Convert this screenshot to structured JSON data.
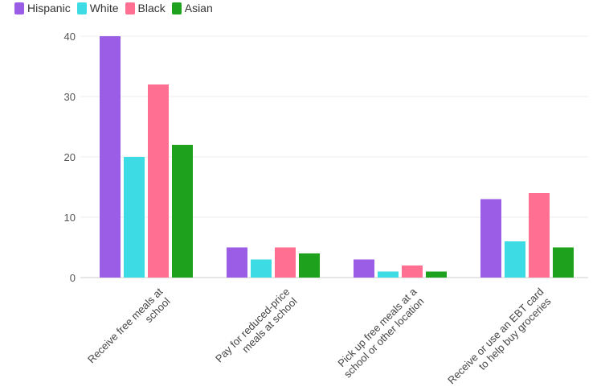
{
  "chart_data": {
    "type": "bar",
    "title": "",
    "xlabel": "",
    "ylabel": "",
    "ylim": [
      0,
      40
    ],
    "yticks": [
      0,
      10,
      20,
      30,
      40
    ],
    "grid": true,
    "legend_position": "top-left",
    "categories": [
      [
        "Receive free meals at",
        "school"
      ],
      [
        "Pay for reduced-price",
        "meals at school"
      ],
      [
        "Pick up free meals at a",
        "school or other location"
      ],
      [
        "Receive or use an EBT card",
        "to help buy groceries"
      ]
    ],
    "series": [
      {
        "name": "Hispanic",
        "color": "#9b5de5",
        "values": [
          40,
          5,
          3,
          13
        ]
      },
      {
        "name": "White",
        "color": "#3ddbe3",
        "values": [
          20,
          3,
          1,
          6
        ]
      },
      {
        "name": "Black",
        "color": "#ff6f91",
        "values": [
          32,
          5,
          2,
          14
        ]
      },
      {
        "name": "Asian",
        "color": "#1ea21e",
        "values": [
          22,
          4,
          1,
          5
        ]
      }
    ]
  }
}
